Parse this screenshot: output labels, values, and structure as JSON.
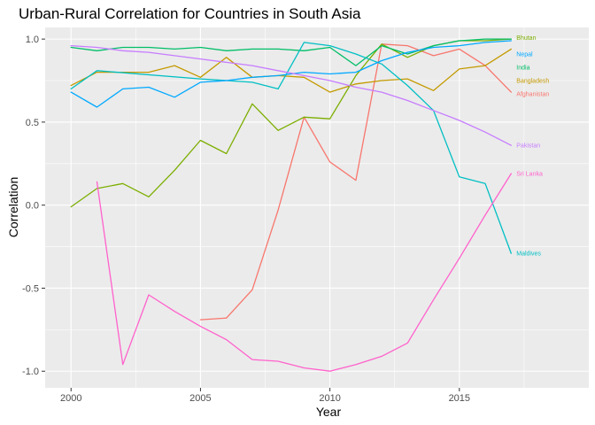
{
  "chart_data": {
    "type": "line",
    "title": "Urban-Rural Correlation for Countries in South Asia",
    "xlabel": "Year",
    "ylabel": "Correlation",
    "xlim": [
      1999,
      2020
    ],
    "ylim": [
      -1.1,
      1.07
    ],
    "x_ticks": [
      2000,
      2005,
      2010,
      2015
    ],
    "y_ticks": [
      -1.0,
      -0.5,
      0.0,
      0.5,
      1.0
    ],
    "y_tick_labels": [
      "-1.0",
      "-0.5",
      "0.0",
      "0.5",
      "1.0"
    ],
    "grid": true,
    "legend": "direct labels at right end of lines",
    "background": "#ebebeb",
    "series": [
      {
        "name": "Afghanistan",
        "color": "#f8766d",
        "x": [
          2005,
          2006,
          2007,
          2008,
          2009,
          2010,
          2011,
          2012,
          2013,
          2014,
          2015,
          2016,
          2017
        ],
        "values": [
          -0.69,
          -0.68,
          -0.51,
          -0.03,
          0.53,
          0.26,
          0.15,
          0.97,
          0.96,
          0.9,
          0.94,
          0.84,
          0.68
        ]
      },
      {
        "name": "Bangladesh",
        "color": "#c49a00",
        "x": [
          2000,
          2001,
          2002,
          2003,
          2004,
          2005,
          2006,
          2007,
          2008,
          2009,
          2010,
          2011,
          2012,
          2013,
          2014,
          2015,
          2016,
          2017
        ],
        "values": [
          0.72,
          0.8,
          0.8,
          0.8,
          0.84,
          0.77,
          0.89,
          0.77,
          0.78,
          0.77,
          0.68,
          0.73,
          0.75,
          0.76,
          0.69,
          0.82,
          0.84,
          0.94
        ]
      },
      {
        "name": "Bhutan",
        "color": "#7cae00",
        "x": [
          2000,
          2001,
          2002,
          2003,
          2004,
          2005,
          2006,
          2007,
          2008,
          2009,
          2010,
          2011,
          2012,
          2013,
          2014,
          2015,
          2016,
          2017
        ],
        "values": [
          -0.01,
          0.1,
          0.13,
          0.05,
          0.21,
          0.39,
          0.31,
          0.61,
          0.45,
          0.53,
          0.52,
          0.78,
          0.97,
          0.89,
          0.96,
          0.99,
          0.99,
          1.0
        ]
      },
      {
        "name": "India",
        "color": "#00be67",
        "x": [
          2000,
          2001,
          2002,
          2003,
          2004,
          2005,
          2006,
          2007,
          2008,
          2009,
          2010,
          2011,
          2012,
          2013,
          2014,
          2015,
          2016,
          2017
        ],
        "values": [
          0.95,
          0.93,
          0.95,
          0.95,
          0.94,
          0.95,
          0.93,
          0.94,
          0.94,
          0.93,
          0.95,
          0.84,
          0.96,
          0.91,
          0.96,
          0.99,
          1.0,
          1.0
        ]
      },
      {
        "name": "Maldives",
        "color": "#00bfc4",
        "x": [
          2000,
          2001,
          2005,
          2006,
          2007,
          2008,
          2009,
          2010,
          2011,
          2012,
          2013,
          2014,
          2015,
          2016,
          2017
        ],
        "values": [
          0.7,
          0.81,
          0.76,
          0.75,
          0.74,
          0.7,
          0.98,
          0.96,
          0.91,
          0.85,
          0.72,
          0.57,
          0.17,
          0.13,
          -0.29
        ]
      },
      {
        "name": "Nepal",
        "color": "#00a9ff",
        "x": [
          2000,
          2001,
          2002,
          2003,
          2004,
          2005,
          2006,
          2007,
          2008,
          2009,
          2010,
          2011,
          2012,
          2013,
          2014,
          2015,
          2016,
          2017
        ],
        "values": [
          0.68,
          0.59,
          0.7,
          0.71,
          0.65,
          0.74,
          0.75,
          0.77,
          0.78,
          0.8,
          0.79,
          0.8,
          0.87,
          0.92,
          0.95,
          0.96,
          0.98,
          0.99
        ]
      },
      {
        "name": "Pakistan",
        "color": "#c77cff",
        "x": [
          2000,
          2001,
          2002,
          2003,
          2004,
          2005,
          2006,
          2007,
          2008,
          2009,
          2010,
          2011,
          2012,
          2013,
          2014,
          2015,
          2016,
          2017
        ],
        "values": [
          0.96,
          0.95,
          0.93,
          0.92,
          0.9,
          0.88,
          0.86,
          0.84,
          0.81,
          0.78,
          0.75,
          0.71,
          0.68,
          0.63,
          0.57,
          0.51,
          0.44,
          0.36
        ]
      },
      {
        "name": "Sri Lanka",
        "color": "#ff61cc",
        "x": [
          2001,
          2002,
          2003,
          2004,
          2005,
          2006,
          2007,
          2008,
          2009,
          2010,
          2011,
          2012,
          2013,
          2014,
          2015,
          2016,
          2017
        ],
        "values": [
          0.14,
          -0.96,
          -0.54,
          -0.64,
          -0.73,
          -0.81,
          -0.93,
          -0.94,
          -0.98,
          -1.0,
          -0.96,
          -0.91,
          -0.83,
          -0.57,
          -0.32,
          -0.06,
          0.19
        ]
      }
    ],
    "series_label_positions": {
      "Afghanistan": 0.67,
      "Bangladesh": 0.75,
      "Bhutan": 1.01,
      "India": 0.83,
      "Maldives": -0.29,
      "Nepal": 0.91,
      "Pakistan": 0.36,
      "Sri Lanka": 0.19
    }
  }
}
